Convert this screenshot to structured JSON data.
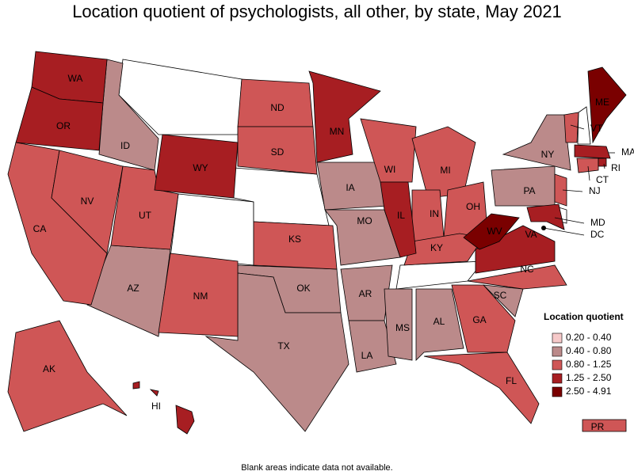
{
  "title": "Location quotient of psychologists, all other, by state, May 2021",
  "legend": {
    "title": "Location quotient",
    "items": [
      {
        "label": "0.20 - 0.40",
        "color": "#f6c9c9",
        "states": []
      },
      {
        "label": "0.40 - 0.80",
        "color": "#bb8a8a",
        "states": [
          "ID",
          "IA",
          "MO",
          "AR",
          "LA",
          "MS",
          "AL",
          "SC",
          "OK",
          "TX",
          "AZ",
          "PA",
          "NY"
        ]
      },
      {
        "label": "0.80 - 1.25",
        "color": "#cf5656",
        "states": [
          "CA",
          "NV",
          "UT",
          "NM",
          "ND",
          "SD",
          "KS",
          "WI",
          "MI",
          "IN",
          "OH",
          "KY",
          "NC",
          "GA",
          "FL",
          "VT",
          "CT",
          "NJ",
          "AK",
          "PR"
        ]
      },
      {
        "label": "1.25 - 2.50",
        "color": "#a71e22",
        "states": [
          "WA",
          "OR",
          "WY",
          "MN",
          "IL",
          "VA",
          "MD",
          "DC",
          "MA",
          "RI",
          "HI"
        ]
      },
      {
        "label": "2.50 - 4.91",
        "color": "#7a0000",
        "states": [
          "WV",
          "ME"
        ]
      }
    ]
  },
  "note": "Blank areas indicate data not available."
}
